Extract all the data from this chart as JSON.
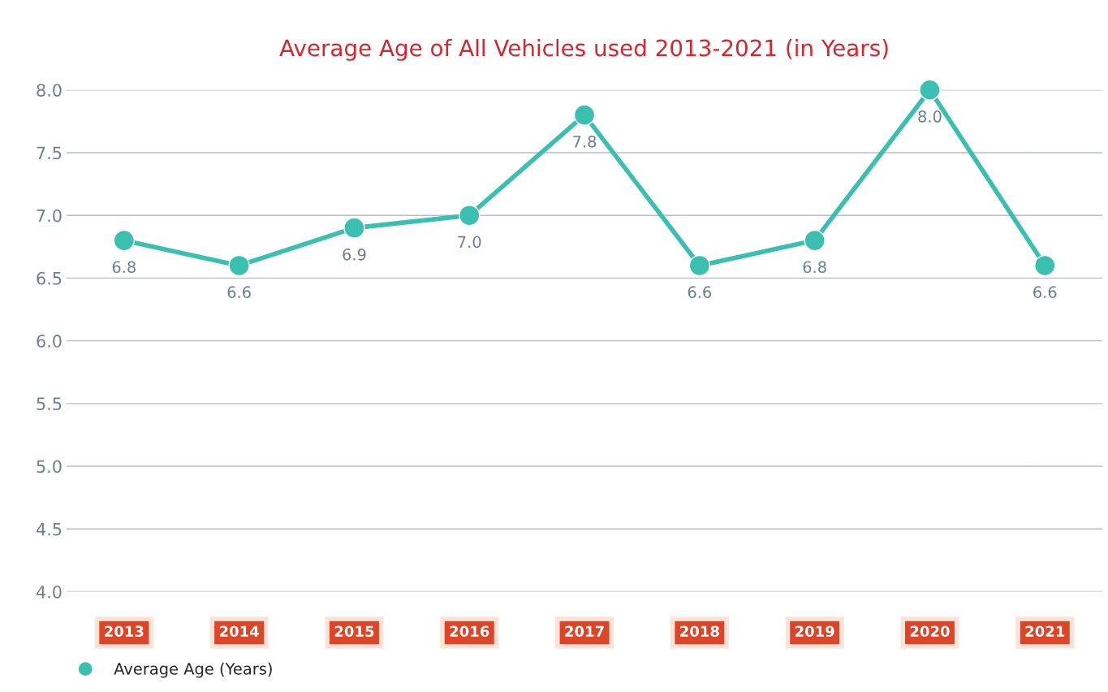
{
  "chart_data": {
    "type": "line",
    "title": "Average Age of All Vehicles used 2013-2021 (in Years)",
    "categories": [
      "2013",
      "2014",
      "2015",
      "2016",
      "2017",
      "2018",
      "2019",
      "2020",
      "2021"
    ],
    "series": [
      {
        "name": "Average Age (Years)",
        "color": "#3bbfb1",
        "values": [
          6.8,
          6.6,
          6.9,
          7.0,
          7.8,
          6.6,
          6.8,
          8.0,
          6.6
        ],
        "value_labels": [
          "6.8",
          "6.6",
          "6.9",
          "7.0",
          "7.8",
          "6.6",
          "6.8",
          "8.0",
          "6.6"
        ]
      }
    ],
    "ylim": [
      4,
      8
    ],
    "yticks": [
      {
        "value": 4,
        "label": "4.0"
      },
      {
        "value": 4.5,
        "label": "4.5"
      },
      {
        "value": 5,
        "label": "5.0"
      },
      {
        "value": 5.5,
        "label": "5.5"
      },
      {
        "value": 6,
        "label": "6.0"
      },
      {
        "value": 6.5,
        "label": "6.5"
      },
      {
        "value": 7,
        "label": "7.0"
      },
      {
        "value": 7.5,
        "label": "7.5"
      },
      {
        "value": 8,
        "label": "8.0"
      }
    ],
    "grid": "y",
    "legend": "bottom left",
    "marker": "circle",
    "line_style": "solid"
  }
}
